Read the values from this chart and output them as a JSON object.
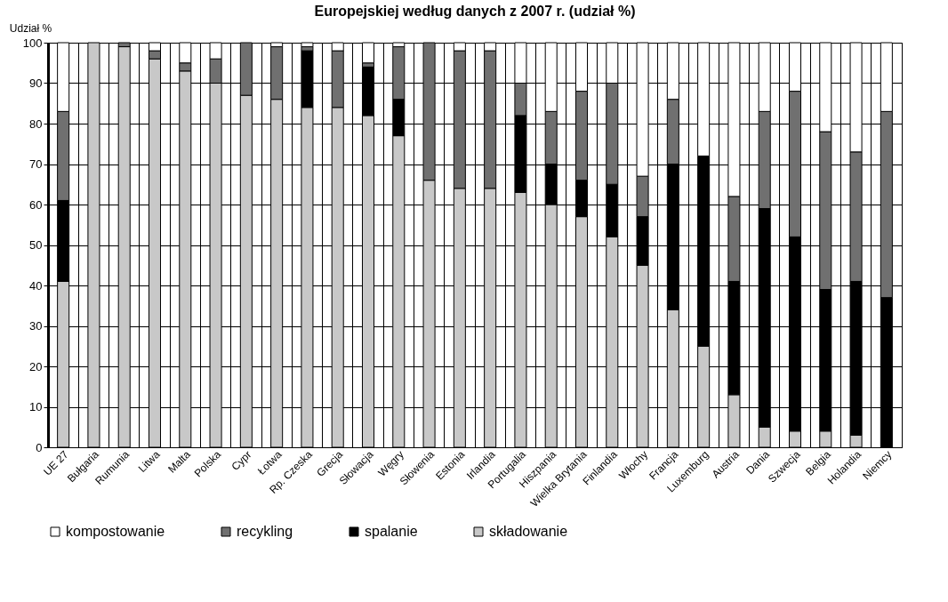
{
  "chart_data": {
    "type": "bar",
    "title": "Europejskiej według danych z 2007 r. (udział %)",
    "ylabel": "Udział %",
    "categories": [
      "UE 27",
      "Bułgaria",
      "Rumunia",
      "Litwa",
      "Malta",
      "Polska",
      "Cypr",
      "Łotwa",
      "Rp. Czeska",
      "Grecja",
      "Słowacja",
      "Węgry",
      "Słowenia",
      "Estonia",
      "Irlandia",
      "Portugalia",
      "Hiszpania",
      "Wielka Brytania",
      "Finlandia",
      "Włochy",
      "Francja",
      "Luxemburg",
      "Austria",
      "Dania",
      "Szwecja",
      "Belgia",
      "Holandia",
      "Niemcy"
    ],
    "stacked": true,
    "series": [
      {
        "name": "składowanie",
        "color": "#c8c8c8",
        "values": [
          41,
          100,
          99,
          96,
          93,
          90,
          87,
          86,
          84,
          84,
          82,
          77,
          66,
          64,
          64,
          63,
          60,
          57,
          52,
          45,
          34,
          25,
          13,
          5,
          4,
          4,
          3,
          0
        ]
      },
      {
        "name": "spalanie",
        "color": "#000000",
        "values": [
          20,
          0,
          0,
          0,
          0,
          0,
          0,
          0,
          14,
          0,
          12,
          9,
          0,
          0,
          0,
          19,
          10,
          9,
          13,
          12,
          36,
          47,
          28,
          54,
          48,
          35,
          38,
          37
        ]
      },
      {
        "name": "recykling",
        "color": "#707070",
        "values": [
          22,
          0,
          1,
          2,
          2,
          6,
          13,
          13,
          1,
          14,
          1,
          13,
          34,
          34,
          34,
          8,
          13,
          22,
          25,
          10,
          16,
          0,
          21,
          24,
          36,
          39,
          32,
          46
        ]
      },
      {
        "name": "kompostowanie",
        "color": "#ffffff",
        "values": [
          17,
          0,
          0,
          2,
          5,
          4,
          0,
          1,
          1,
          2,
          5,
          1,
          0,
          2,
          2,
          10,
          17,
          12,
          10,
          33,
          14,
          28,
          38,
          17,
          12,
          22,
          27,
          17
        ]
      }
    ],
    "ylim": [
      0,
      100
    ],
    "yticks": [
      0,
      10,
      20,
      30,
      40,
      50,
      60,
      70,
      80,
      90,
      100
    ],
    "grid": true,
    "legend": "bottom"
  }
}
